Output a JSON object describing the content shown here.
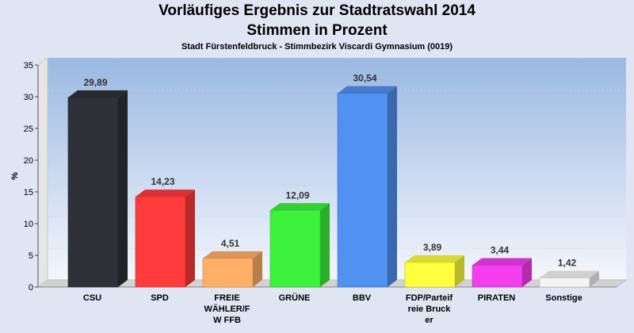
{
  "title": "Vorläufiges Ergebnis zur Stadtratswahl 2014",
  "subtitle": "Stimmen in Prozent",
  "caption": "Stadt Fürstenfeldbruck - Stimmbezirk Viscardi Gymnasium (0019)",
  "chart_data": {
    "type": "bar",
    "categories": [
      [
        "CSU"
      ],
      [
        "SPD"
      ],
      [
        "FREIE",
        "WÄHLER/F",
        "W FFB"
      ],
      [
        "GRÜNE"
      ],
      [
        "BBV"
      ],
      [
        "FDP/Parteif",
        "reie Bruck",
        "er"
      ],
      [
        "PIRATEN"
      ],
      [
        "Sonstige"
      ]
    ],
    "values": [
      29.89,
      14.23,
      4.51,
      12.09,
      30.54,
      3.89,
      3.44,
      1.42
    ],
    "value_labels": [
      "29,89",
      "14,23",
      "4,51",
      "12,09",
      "30,54",
      "3,89",
      "3,44",
      "1,42"
    ],
    "colors": [
      "#2f3138",
      "#ff3b3b",
      "#ffb066",
      "#3cf23c",
      "#5191f2",
      "#ffff3d",
      "#f53df0",
      "#f4f4f4"
    ],
    "ylabel": "%",
    "ylim": [
      0,
      35
    ],
    "yticks": [
      0,
      5,
      10,
      15,
      20,
      25,
      30,
      35
    ],
    "grid": true
  }
}
